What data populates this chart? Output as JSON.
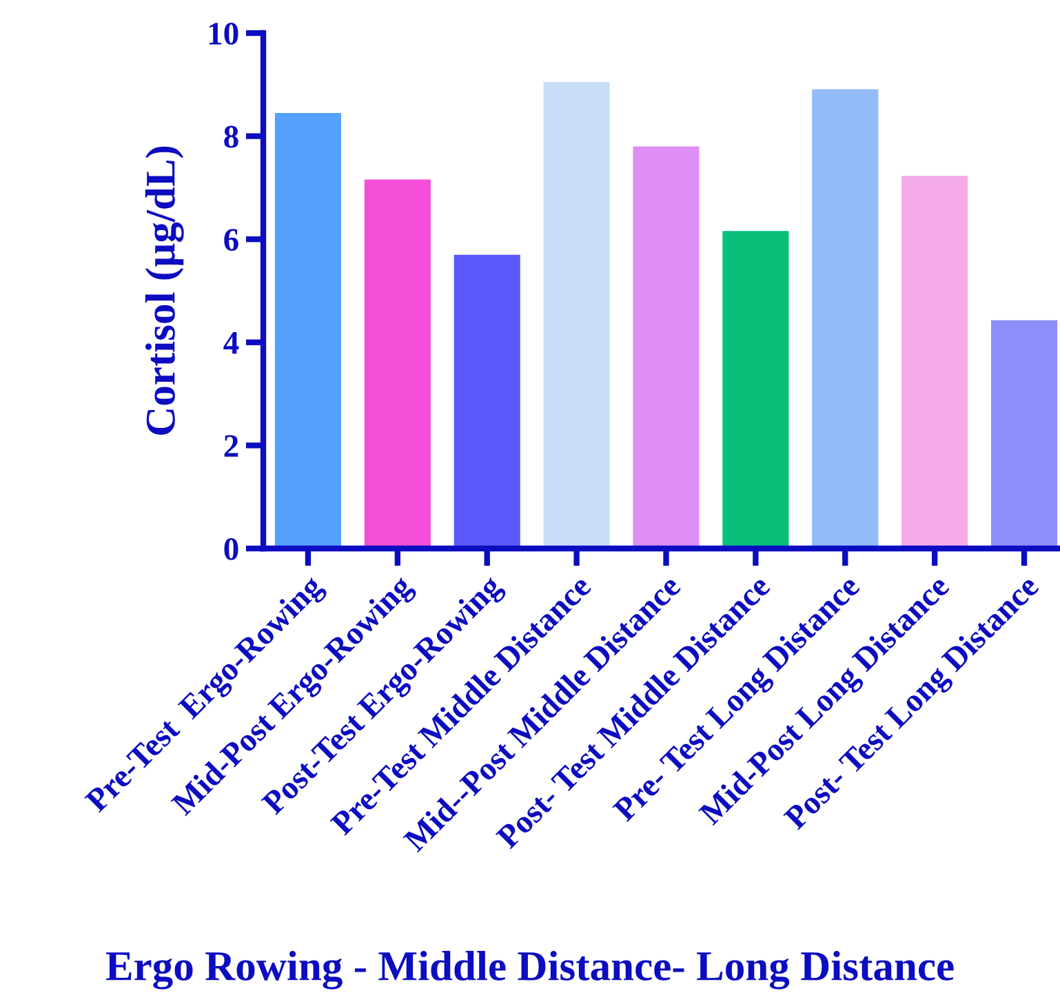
{
  "chart_data": {
    "type": "bar",
    "categories": [
      "Pre-Test  Ergo-Rowing",
      "Mid-Post Ergo-Rowing",
      "Post-Test Ergo-Rowing",
      "Pre-Test Middle Distance",
      "Mid--Post Middle Distance",
      "Post- Test Middle Distance",
      "Pre- Test Long Distance",
      "Mid-Post Long Distance",
      "Post- Test Long Distance"
    ],
    "values": [
      8.45,
      7.16,
      5.7,
      9.05,
      7.8,
      6.16,
      8.91,
      7.23,
      4.43
    ],
    "colors": [
      "#55a0fd",
      "#f54fd9",
      "#5a5afa",
      "#c8def8",
      "#df8ef5",
      "#08c07a",
      "#91bcf7",
      "#f5aaea",
      "#8e8efc"
    ],
    "xlabel": "Ergo Rowing - Middle Distance- Long Distance",
    "ylabel": "Cortisol (µg/dL)",
    "ylim": [
      0,
      10
    ],
    "yticks": [
      0,
      2,
      4,
      6,
      8,
      10
    ],
    "grid": false,
    "legend": false
  }
}
